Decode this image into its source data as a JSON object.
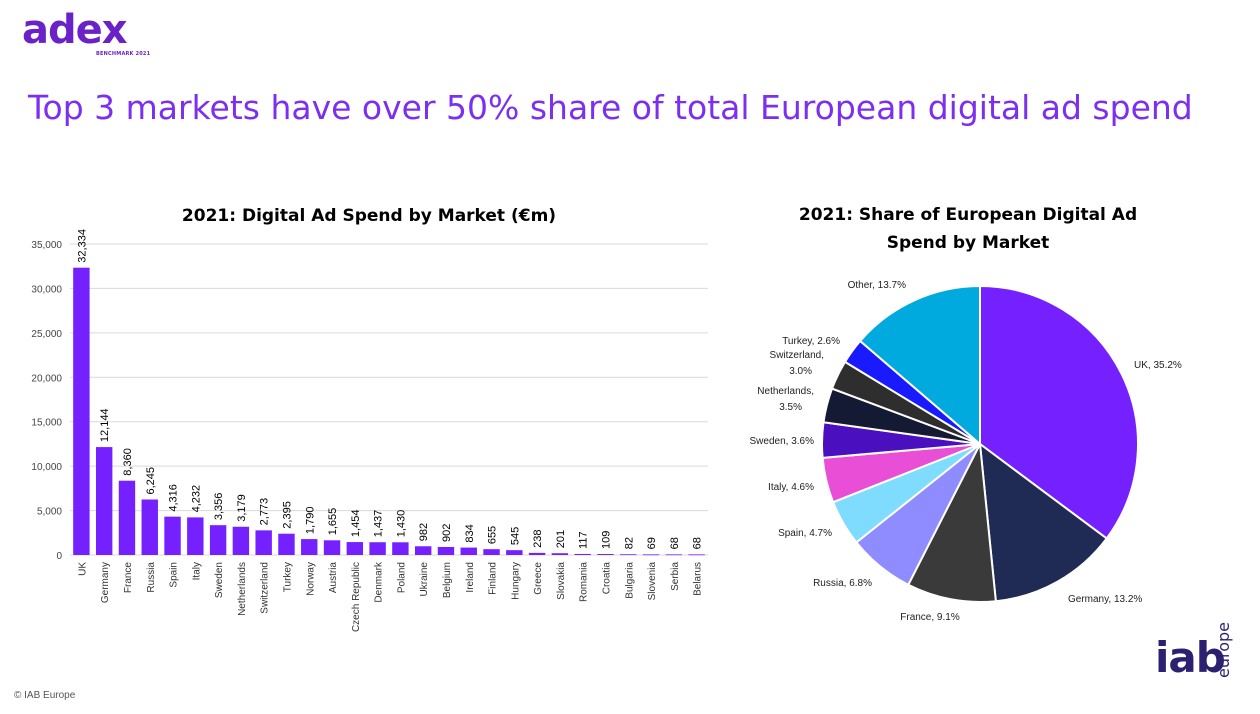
{
  "logo": {
    "main": "adex",
    "sub": "BENCHMARK 2021"
  },
  "headline": "Top 3 markets have over 50% share of total European digital ad spend",
  "colors": {
    "bar": "#7420ff",
    "headline": "#7c2ff0",
    "logo": "#6b21c8",
    "iab": "#2b2170"
  },
  "chart_data": [
    {
      "type": "bar",
      "title": "2021: Digital Ad Spend by Market (€m)",
      "categories": [
        "UK",
        "Germany",
        "France",
        "Russia",
        "Spain",
        "Italy",
        "Sweden",
        "Netherlands",
        "Switzerland",
        "Turkey",
        "Norway",
        "Austria",
        "Czech Republic",
        "Denmark",
        "Poland",
        "Ukraine",
        "Belgium",
        "Ireland",
        "Finland",
        "Hungary",
        "Greece",
        "Slovakia",
        "Romania",
        "Croatia",
        "Bulgaria",
        "Slovenia",
        "Serbia",
        "Belarus"
      ],
      "values": [
        32334,
        12144,
        8360,
        6245,
        4316,
        4232,
        3356,
        3179,
        2773,
        2395,
        1790,
        1655,
        1454,
        1437,
        1430,
        982,
        902,
        834,
        655,
        545,
        238,
        201,
        117,
        109,
        82,
        69,
        68,
        68
      ],
      "value_labels": [
        "32,334",
        "12,144",
        "8,360",
        "6,245",
        "4,316",
        "4,232",
        "3,356",
        "3,179",
        "2,773",
        "2,395",
        "1,790",
        "1,655",
        "1,454",
        "1,437",
        "1,430",
        "982",
        "902",
        "834",
        "655",
        "545",
        "238",
        "201",
        "117",
        "109",
        "82",
        "69",
        "68",
        "68"
      ],
      "ylim": [
        0,
        35000
      ],
      "yticks": [
        0,
        5000,
        10000,
        15000,
        20000,
        25000,
        30000,
        35000
      ],
      "ytick_labels": [
        "0",
        "5,000",
        "10,000",
        "15,000",
        "20,000",
        "25,000",
        "30,000",
        "35,000"
      ],
      "grid": true
    },
    {
      "type": "pie",
      "title": "2021: Share of European Digital Ad Spend by Market",
      "slices": [
        {
          "label": "UK, 35.2%",
          "value": 35.2,
          "color": "#7420ff"
        },
        {
          "label": "Germany, 13.2%",
          "value": 13.2,
          "color": "#1f2a55"
        },
        {
          "label": "France, 9.1%",
          "value": 9.1,
          "color": "#3a3a3a"
        },
        {
          "label": "Russia, 6.8%",
          "value": 6.8,
          "color": "#8f8cff"
        },
        {
          "label": "Spain, 4.7%",
          "value": 4.7,
          "color": "#7fdcff"
        },
        {
          "label": "Italy, 4.6%",
          "value": 4.6,
          "color": "#e84fd6"
        },
        {
          "label": "Sweden, 3.6%",
          "value": 3.6,
          "color": "#4a0fbe"
        },
        {
          "label": "Netherlands, 3.5%",
          "value": 3.5,
          "color": "#141a33"
        },
        {
          "label": "Switzerland, 3.0%",
          "value": 3.0,
          "color": "#2e2e2e"
        },
        {
          "label": "Turkey, 2.6%",
          "value": 2.6,
          "color": "#1a1aff"
        },
        {
          "label": "Other, 13.7%",
          "value": 13.7,
          "color": "#00aadf"
        }
      ]
    }
  ],
  "footer": {
    "copyright": "© IAB Europe",
    "iab": "iab",
    "iab_europe": "europe"
  }
}
